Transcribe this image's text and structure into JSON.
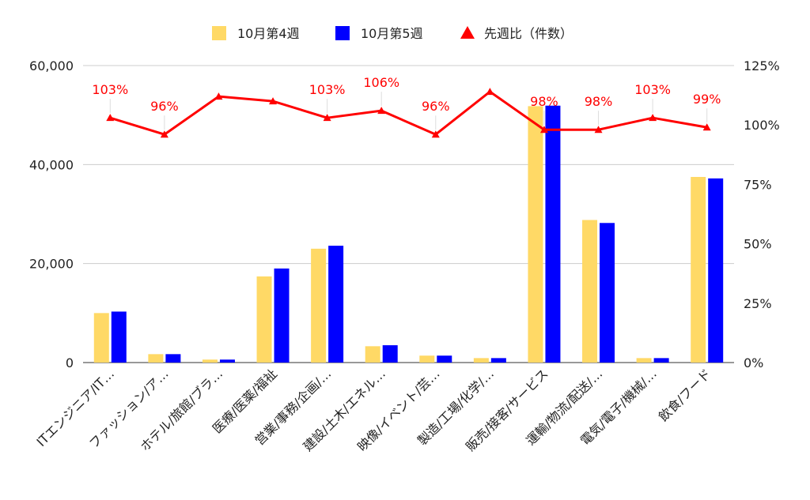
{
  "chart_data": {
    "type": "bar",
    "categories": [
      "ITエンジニア/IT…",
      "ファッション/ア…",
      "ホテル/旅館/ブラ…",
      "医療/医薬/福祉",
      "営業/事務/企画/…",
      "建設/土木/エネル…",
      "映像/イベント/芸…",
      "製造/工場/化学/…",
      "販売/接客/サービス",
      "運輸/物流/配送/…",
      "電気/電子/機械/…",
      "飲食/フード"
    ],
    "series": [
      {
        "name": "10月第4週",
        "type": "bar",
        "axis": "left",
        "color": "#ffd966",
        "values": [
          10000,
          1700,
          600,
          17400,
          23000,
          3300,
          1400,
          900,
          51800,
          28800,
          900,
          37500
        ]
      },
      {
        "name": "10月第5週",
        "type": "bar",
        "axis": "left",
        "color": "#0000ff",
        "values": [
          10300,
          1700,
          600,
          19000,
          23600,
          3500,
          1400,
          900,
          51900,
          28200,
          900,
          37200
        ]
      },
      {
        "name": "先週比（件数）",
        "type": "line",
        "axis": "right",
        "color": "#ff0000",
        "values": [
          103,
          96,
          112,
          110,
          103,
          106,
          96,
          114,
          98,
          98,
          103,
          99
        ],
        "labels": [
          "103%",
          "96%",
          "",
          "",
          "103%",
          "106%",
          "96%",
          "",
          "98%",
          "98%",
          "103%",
          "99%"
        ]
      }
    ],
    "y_left": {
      "ylim": [
        0,
        60000
      ],
      "ticks": [
        "0",
        "20,000",
        "40,000",
        "60,000"
      ],
      "tick_values": [
        0,
        20000,
        40000,
        60000
      ]
    },
    "y_right": {
      "ylim": [
        0,
        125
      ],
      "ticks": [
        "0%",
        "25%",
        "50%",
        "75%",
        "100%",
        "125%"
      ],
      "tick_values": [
        0,
        25,
        50,
        75,
        100,
        125
      ]
    },
    "title": "",
    "xlabel": "",
    "ylabel": "",
    "grid": true,
    "legend_position": "top-center"
  }
}
